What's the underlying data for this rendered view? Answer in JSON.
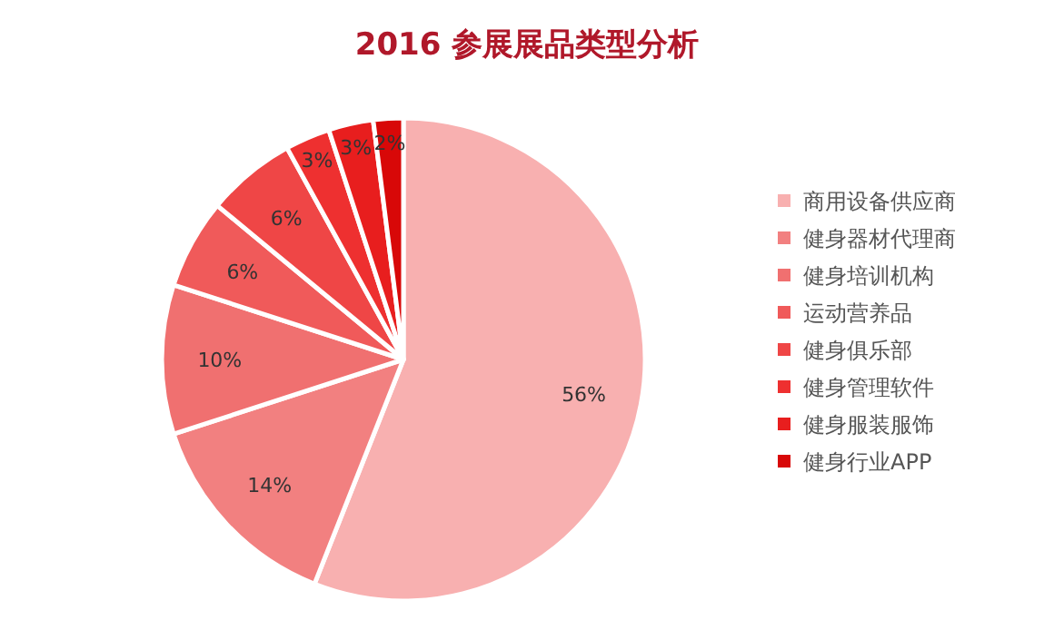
{
  "chart_data": {
    "type": "pie",
    "title": "2016 参展展品类型分析",
    "categories": [
      "商用设备供应商",
      "健身器材代理商",
      "健身培训机构",
      "运动营养品",
      "健身俱乐部",
      "健身管理软件",
      "健身服装服饰",
      "健身行业APP"
    ],
    "values": [
      56,
      14,
      10,
      6,
      6,
      3,
      3,
      2
    ],
    "value_labels": [
      "56%",
      "14%",
      "10%",
      "6%",
      "6%",
      "3%",
      "3%",
      "2%"
    ],
    "colors": [
      "#f8b0b0",
      "#f28080",
      "#f07070",
      "#f05a5a",
      "#ef4646",
      "#ee3030",
      "#e81e1e",
      "#d80808"
    ],
    "legend": "right"
  }
}
